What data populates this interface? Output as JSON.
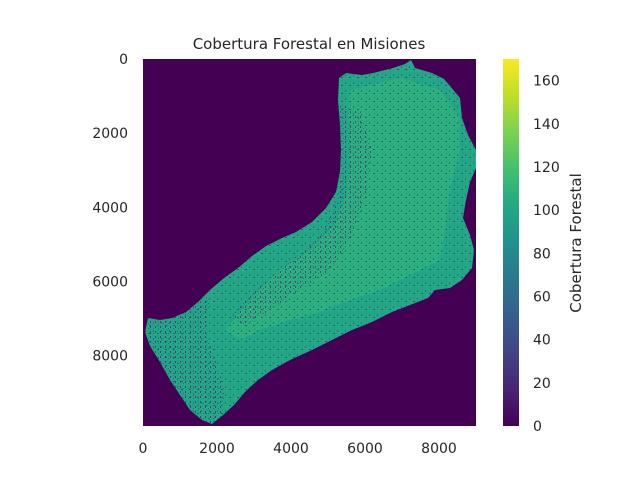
{
  "chart_data": {
    "type": "heatmap",
    "title": "Cobertura Forestal en Misiones",
    "xlabel": "",
    "ylabel": "",
    "x_ticks": [
      0,
      2000,
      4000,
      6000,
      8000
    ],
    "y_ticks": [
      0,
      2000,
      4000,
      6000,
      8000
    ],
    "xlim": [
      0,
      9000
    ],
    "ylim": [
      9900,
      0
    ],
    "grid": false,
    "colormap": "viridis",
    "colorbar": {
      "label": "Cobertura Forestal",
      "range": [
        0,
        170
      ],
      "ticks": [
        0,
        20,
        40,
        60,
        80,
        100,
        120,
        140,
        160
      ]
    },
    "dominant_values": {
      "background": 0,
      "forest": 100
    },
    "colors": {
      "background": "#440154",
      "forest": "#22a884",
      "forest_light": "#35b779",
      "forest_dense": "#2b9c86",
      "mid": "#3b528b",
      "deep": "#482878"
    }
  }
}
